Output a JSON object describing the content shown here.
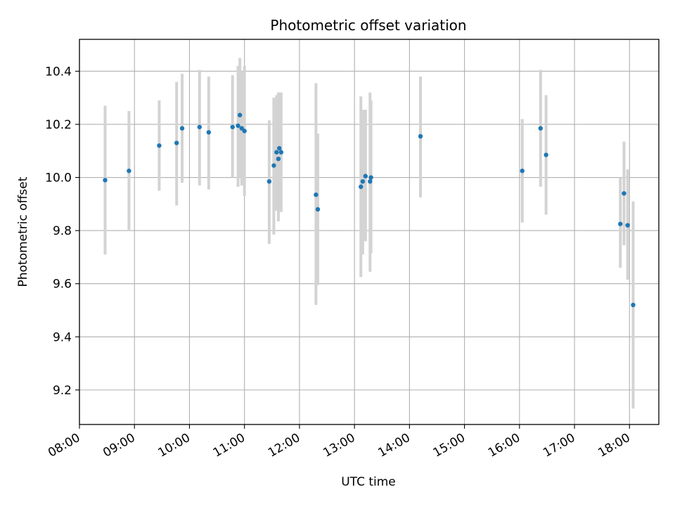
{
  "chart_data": {
    "type": "scatter",
    "title": "Photometric offset variation",
    "xlabel": "UTC time",
    "ylabel": "Photometric offset",
    "x_tick_labels": [
      "08:00",
      "09:00",
      "10:00",
      "11:00",
      "12:00",
      "13:00",
      "14:00",
      "15:00",
      "16:00",
      "17:00",
      "18:00"
    ],
    "y_tick_labels": [
      "9.2",
      "9.4",
      "9.6",
      "9.8",
      "10.0",
      "10.2",
      "10.4"
    ],
    "x_ticks": [
      "08:00",
      "09:00",
      "10:00",
      "11:00",
      "12:00",
      "13:00",
      "14:00",
      "15:00",
      "16:00",
      "17:00",
      "18:00"
    ],
    "y_ticks": [
      9.2,
      9.4,
      9.6,
      9.8,
      10.0,
      10.2,
      10.4
    ],
    "xlim": [
      "08:00",
      "18:32"
    ],
    "ylim": [
      9.07,
      10.52
    ],
    "grid": true,
    "colors": {
      "point": "#1f77b4",
      "errorbar": "#d3d3d3",
      "grid": "#b0b0b0"
    },
    "points": [
      {
        "t": "08:28",
        "y": 9.99,
        "lo": 9.71,
        "hi": 10.27
      },
      {
        "t": "08:54",
        "y": 10.025,
        "lo": 9.8,
        "hi": 10.25
      },
      {
        "t": "09:27",
        "y": 10.12,
        "lo": 9.95,
        "hi": 10.29
      },
      {
        "t": "09:46",
        "y": 10.13,
        "lo": 9.895,
        "hi": 10.36
      },
      {
        "t": "09:52",
        "y": 10.185,
        "lo": 9.98,
        "hi": 10.39
      },
      {
        "t": "10:11",
        "y": 10.19,
        "lo": 9.97,
        "hi": 10.405
      },
      {
        "t": "10:21",
        "y": 10.17,
        "lo": 9.955,
        "hi": 10.38
      },
      {
        "t": "10:47",
        "y": 10.19,
        "lo": 10.0,
        "hi": 10.385
      },
      {
        "t": "10:53",
        "y": 10.195,
        "lo": 9.965,
        "hi": 10.42
      },
      {
        "t": "10:55",
        "y": 10.235,
        "lo": 10.0,
        "hi": 10.45
      },
      {
        "t": "10:57",
        "y": 10.185,
        "lo": 9.97,
        "hi": 10.4
      },
      {
        "t": "11:00",
        "y": 10.175,
        "lo": 9.93,
        "hi": 10.42
      },
      {
        "t": "11:27",
        "y": 9.985,
        "lo": 9.75,
        "hi": 10.215
      },
      {
        "t": "11:32",
        "y": 10.045,
        "lo": 9.785,
        "hi": 10.3
      },
      {
        "t": "11:35",
        "y": 10.095,
        "lo": 9.875,
        "hi": 10.31
      },
      {
        "t": "11:37",
        "y": 10.07,
        "lo": 9.835,
        "hi": 10.32
      },
      {
        "t": "11:38",
        "y": 10.11,
        "lo": 9.88,
        "hi": 10.32
      },
      {
        "t": "11:40",
        "y": 10.095,
        "lo": 9.87,
        "hi": 10.32
      },
      {
        "t": "12:18",
        "y": 9.935,
        "lo": 9.52,
        "hi": 10.355
      },
      {
        "t": "12:20",
        "y": 9.88,
        "lo": 9.595,
        "hi": 10.165
      },
      {
        "t": "13:07",
        "y": 9.965,
        "lo": 9.625,
        "hi": 10.305
      },
      {
        "t": "13:09",
        "y": 9.985,
        "lo": 9.71,
        "hi": 10.255
      },
      {
        "t": "13:12",
        "y": 10.005,
        "lo": 9.76,
        "hi": 10.255
      },
      {
        "t": "13:17",
        "y": 9.985,
        "lo": 9.645,
        "hi": 10.32
      },
      {
        "t": "13:18",
        "y": 10.0,
        "lo": 9.715,
        "hi": 10.29
      },
      {
        "t": "14:12",
        "y": 10.155,
        "lo": 9.925,
        "hi": 10.38
      },
      {
        "t": "16:03",
        "y": 10.025,
        "lo": 9.83,
        "hi": 10.22
      },
      {
        "t": "16:23",
        "y": 10.185,
        "lo": 9.965,
        "hi": 10.405
      },
      {
        "t": "16:29",
        "y": 10.085,
        "lo": 9.86,
        "hi": 10.31
      },
      {
        "t": "17:50",
        "y": 9.825,
        "lo": 9.66,
        "hi": 10.0
      },
      {
        "t": "17:54",
        "y": 9.94,
        "lo": 9.745,
        "hi": 10.135
      },
      {
        "t": "17:58",
        "y": 9.82,
        "lo": 9.615,
        "hi": 10.03
      },
      {
        "t": "18:04",
        "y": 9.52,
        "lo": 9.13,
        "hi": 9.91
      }
    ]
  }
}
